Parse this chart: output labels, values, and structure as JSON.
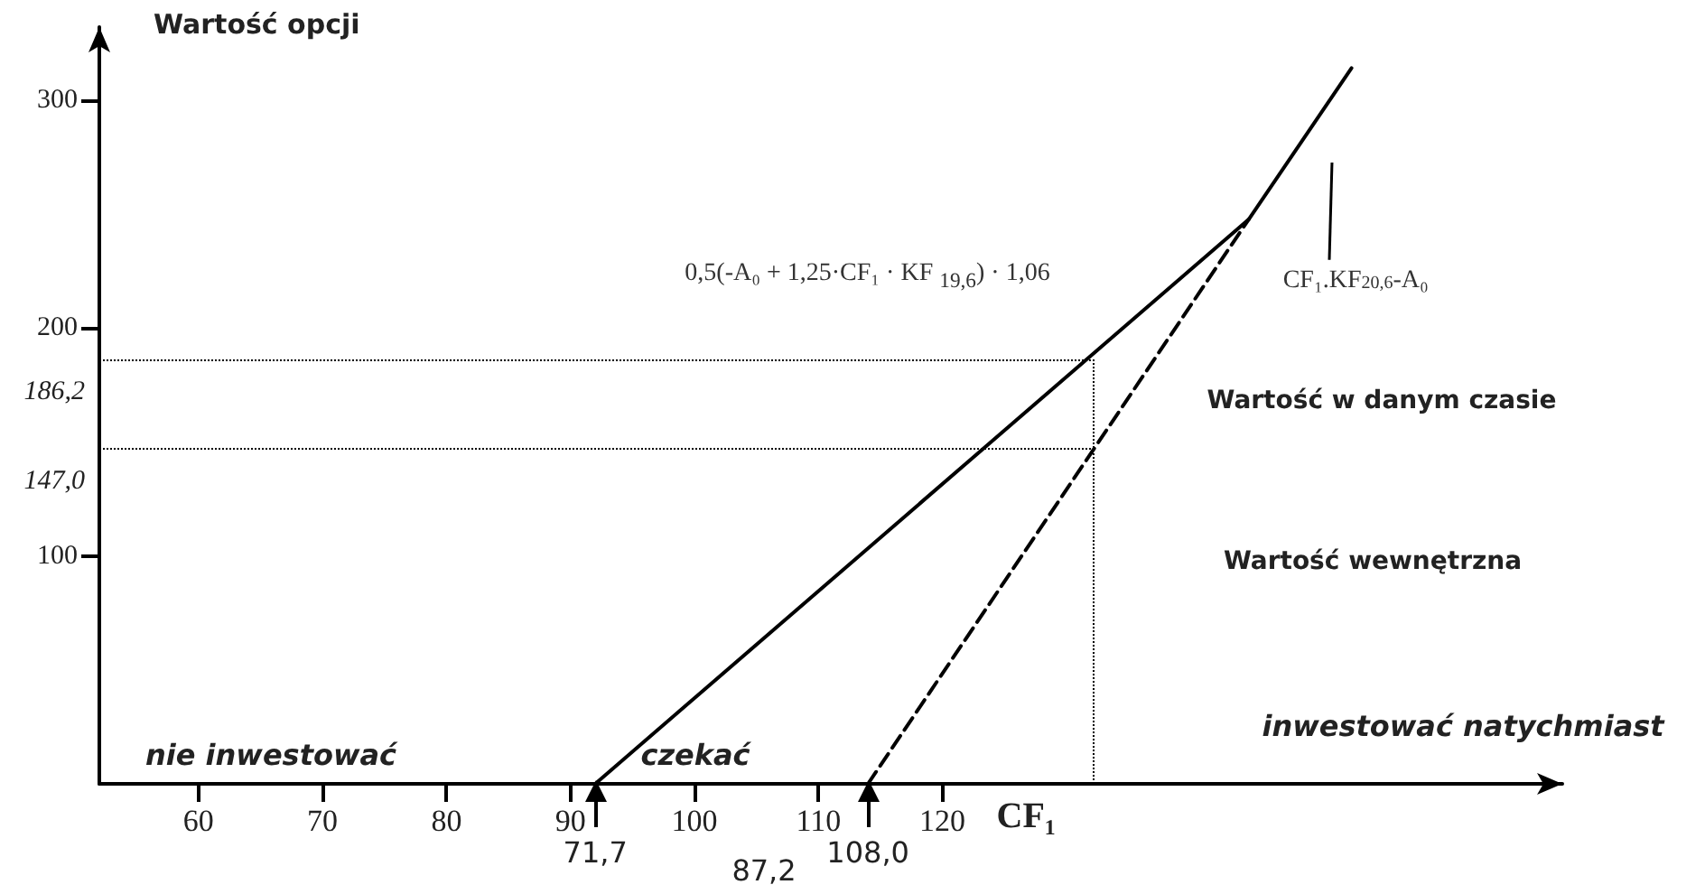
{
  "chart_data": {
    "type": "line",
    "ylabel": "Wartość opcji",
    "xlabel": "CF₁",
    "xlim": [
      52,
      170
    ],
    "ylim": [
      0,
      332
    ],
    "xticks": [
      60,
      70,
      80,
      90,
      100,
      110,
      120
    ],
    "yticks": [
      100,
      200,
      300
    ],
    "series": [
      {
        "name": "0,5(-A₀ + 1,25·CF₁ · KF $_{19,6}$) · 1,06",
        "color": "#000000",
        "x": [
          92,
          144.7,
          153
        ],
        "values": [
          0,
          247.6,
          314
        ],
        "line_style": "solid"
      },
      {
        "name": "CF₁.KF$_{20,6}$-A₀",
        "color": "#000000",
        "x": [
          114,
          144.7
        ],
        "values": [
          0,
          247.6
        ],
        "line_style": "dashed"
      }
    ],
    "ref_lines": [
      {
        "axis": "y",
        "value": 186.2,
        "label": "186,2",
        "line_style": "dotted"
      },
      {
        "axis": "y",
        "value": 147.0,
        "label": "147,0",
        "line_style": "dotted"
      },
      {
        "axis": "x",
        "value": 132.2,
        "line_style": "dotted"
      }
    ],
    "annotations": [
      "nie inwestować",
      "czekać",
      "inwestować natychmiast",
      "Wartość w danym czasie",
      "Wartość wewnętrzna",
      {
        "text": "71,7",
        "x": 92,
        "y": 0
      },
      "87,2",
      {
        "text": "108,0",
        "x": 114,
        "y": 0
      }
    ],
    "grid": false,
    "legend": false
  }
}
